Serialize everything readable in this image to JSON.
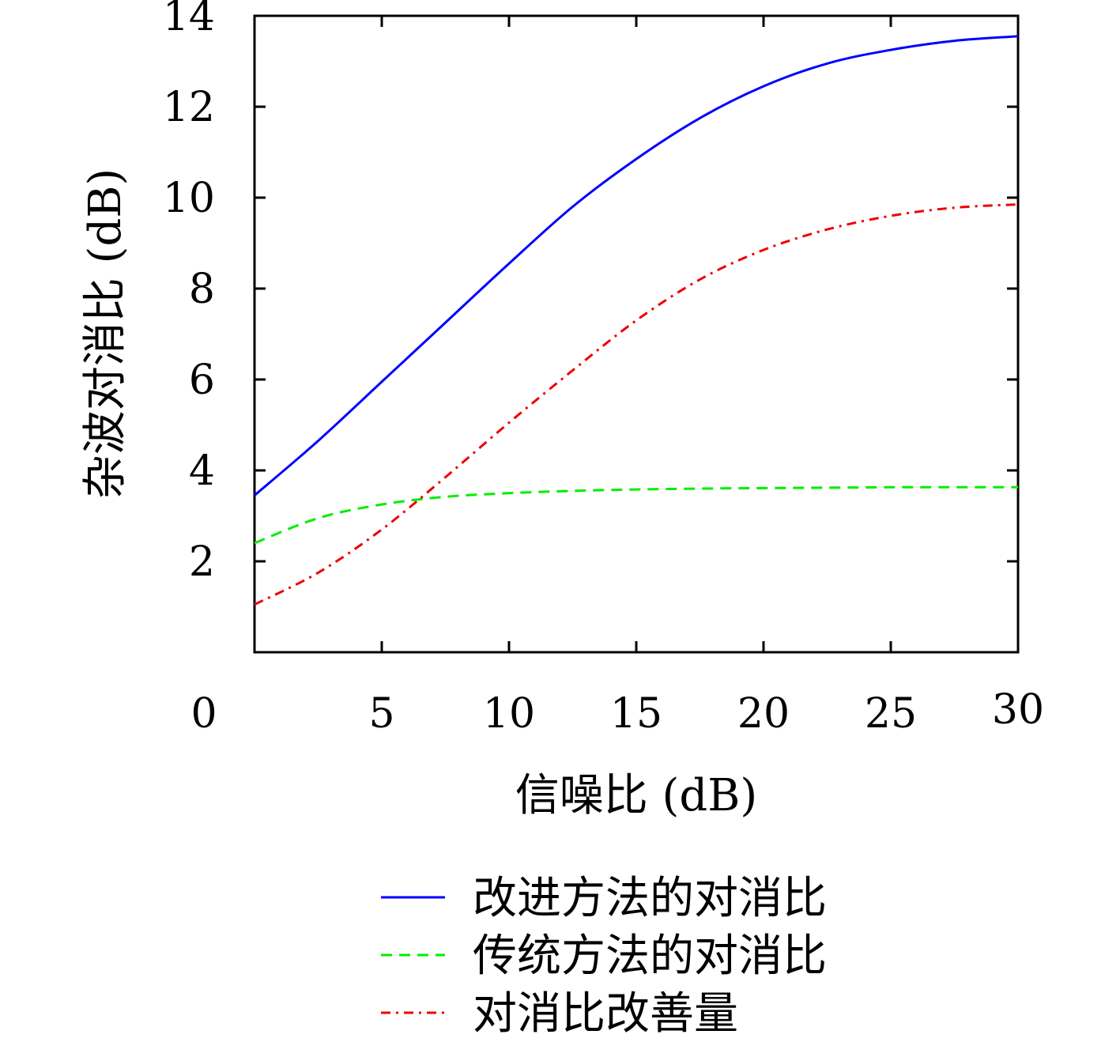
{
  "chart_data": {
    "type": "line",
    "title": "",
    "xlabel": "信噪比 (dB)",
    "ylabel": "杂波对消比 (dB)",
    "xlim": [
      0,
      30
    ],
    "ylim": [
      0,
      14
    ],
    "x_ticks": [
      "0",
      "5",
      "10",
      "15",
      "20",
      "25",
      "30"
    ],
    "y_ticks": [
      "2",
      "4",
      "6",
      "8",
      "10",
      "12",
      "14"
    ],
    "grid": false,
    "legend_position": "bottom",
    "x": [
      0,
      2.5,
      5,
      7.5,
      10,
      12.5,
      15,
      17.5,
      20,
      22.5,
      25,
      27.5,
      30
    ],
    "series": [
      {
        "name": "改进方法的对消比",
        "color": "#0000ff",
        "style": "solid",
        "values": [
          3.45,
          4.65,
          5.95,
          7.25,
          8.55,
          9.8,
          10.85,
          11.75,
          12.45,
          12.95,
          13.25,
          13.45,
          13.55
        ]
      },
      {
        "name": "传统方法的对消比",
        "color": "#00ee00",
        "style": "dashed",
        "values": [
          2.4,
          2.95,
          3.25,
          3.42,
          3.5,
          3.55,
          3.58,
          3.6,
          3.61,
          3.62,
          3.63,
          3.63,
          3.63
        ]
      },
      {
        "name": "对消比改善量",
        "color": "#ee0000",
        "style": "dashdot",
        "values": [
          1.05,
          1.75,
          2.7,
          3.85,
          5.05,
          6.2,
          7.3,
          8.2,
          8.85,
          9.3,
          9.6,
          9.78,
          9.85
        ]
      }
    ]
  }
}
